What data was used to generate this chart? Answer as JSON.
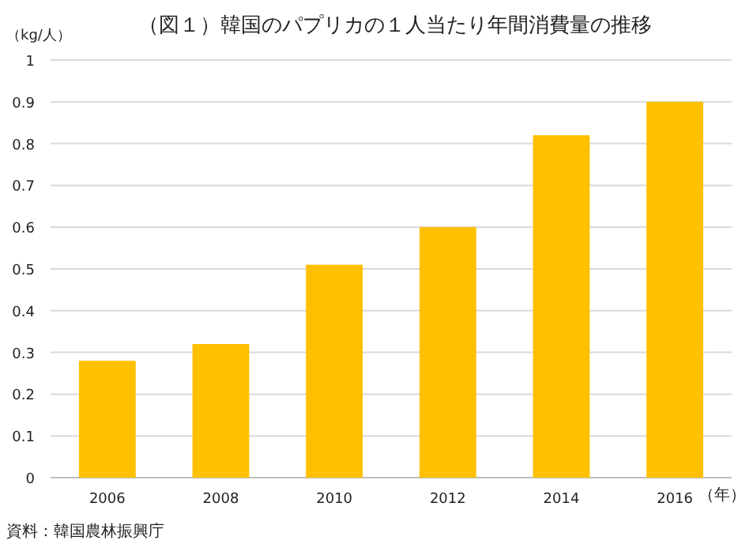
{
  "chart_data": {
    "type": "bar",
    "title": "（図１）韓国のパプリカの１人当たり年間消費量の推移",
    "ylabel": "（kg/人）",
    "xlabel": "（年）",
    "annotations": [
      "資料：韓国農林振興庁"
    ],
    "categories": [
      "2006",
      "2008",
      "2010",
      "2012",
      "2014",
      "2016"
    ],
    "values": [
      0.28,
      0.32,
      0.51,
      0.6,
      0.82,
      0.9
    ],
    "color": "#ffc000",
    "ylim": [
      0,
      1
    ],
    "yticks": [
      0,
      0.1,
      0.2,
      0.3,
      0.4,
      0.5,
      0.6,
      0.7,
      0.8,
      0.9,
      1
    ],
    "grid": "y"
  }
}
